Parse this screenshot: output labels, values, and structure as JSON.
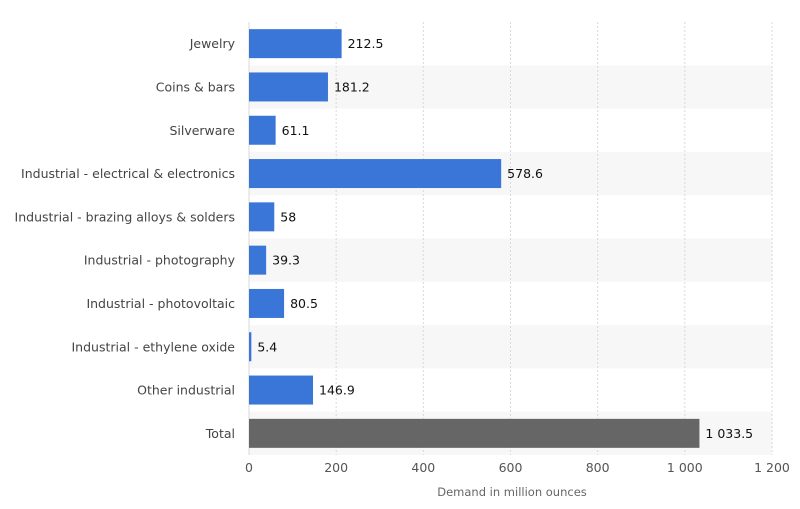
{
  "chart_data": {
    "type": "bar",
    "orientation": "horizontal",
    "categories": [
      "Jewelry",
      "Coins & bars",
      "Silverware",
      "Industrial - electrical & electronics",
      "Industrial - brazing alloys & solders",
      "Industrial - photography",
      "Industrial - photovoltaic",
      "Industrial - ethylene oxide",
      "Other industrial",
      "Total"
    ],
    "values": [
      212.5,
      181.2,
      61.1,
      578.6,
      58,
      39.3,
      80.5,
      5.4,
      146.9,
      1033.5
    ],
    "value_labels": [
      "212.5",
      "181.2",
      "61.1",
      "578.6",
      "58",
      "39.3",
      "80.5",
      "5.4",
      "146.9",
      "1 033.5"
    ],
    "title": "",
    "xlabel": "Demand in million ounces",
    "ylabel": "",
    "xlim": [
      0,
      1200
    ],
    "xticks": [
      0,
      200,
      400,
      600,
      800,
      1000,
      1200
    ],
    "xtick_labels": [
      "0",
      "200",
      "400",
      "600",
      "800",
      "1 000",
      "1 200"
    ],
    "grid": true,
    "legend": "none",
    "colors": {
      "bar": "#3a76d8",
      "total_bar": "#666666",
      "band": "#f7f7f7",
      "grid": "#d9d9d9"
    }
  }
}
